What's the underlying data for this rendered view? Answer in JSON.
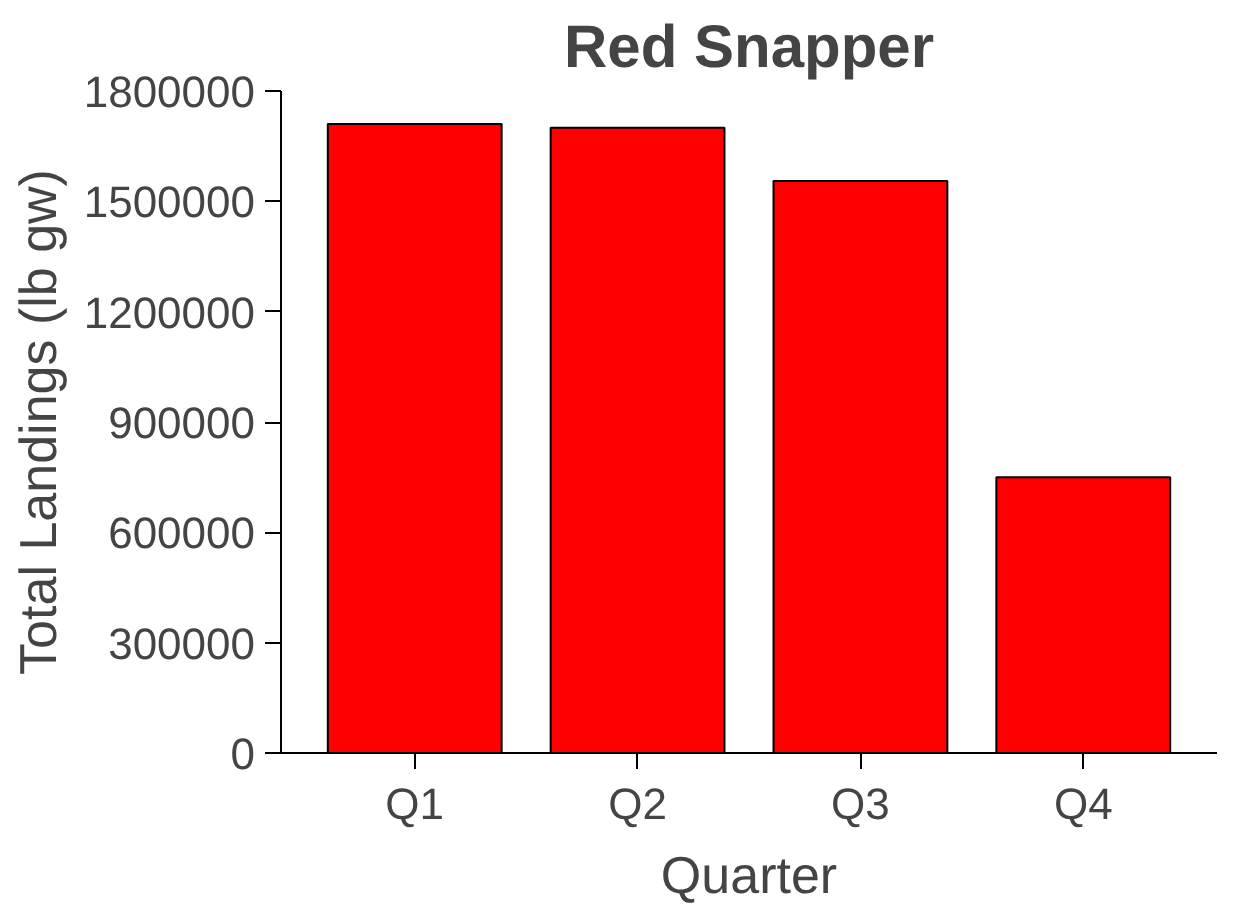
{
  "chart_data": {
    "type": "bar",
    "title": "Red Snapper",
    "xlabel": "Quarter",
    "ylabel": "Total Landings (lb gw)",
    "categories": [
      "Q1",
      "Q2",
      "Q3",
      "Q4"
    ],
    "values": [
      1710000,
      1700000,
      1555000,
      750000
    ],
    "color": "#ff0000",
    "ylim": [
      0,
      1800000
    ],
    "yticks": [
      0,
      300000,
      600000,
      900000,
      1200000,
      1500000,
      1800000
    ],
    "grid": false
  }
}
